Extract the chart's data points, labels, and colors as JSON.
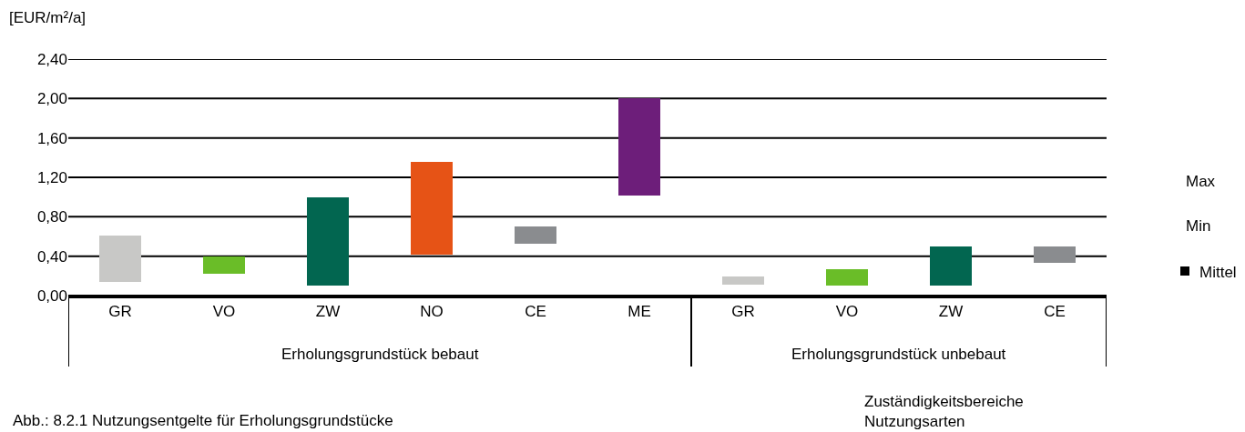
{
  "chart_data": {
    "type": "bar",
    "ylabel": "[EUR/m²/a]",
    "categories": [
      "GR",
      "VO",
      "ZW",
      "NO",
      "CE",
      "ME",
      "GR",
      "VO",
      "ZW",
      "CE"
    ],
    "base": [
      0.14,
      0.22,
      0.1,
      0.42,
      0.53,
      1.02,
      0.11,
      0.1,
      0.1,
      0.33
    ],
    "values": [
      0.47,
      0.18,
      0.9,
      0.94,
      0.17,
      0.98,
      0.08,
      0.17,
      0.4,
      0.17
    ],
    "colors": [
      "#c8c8c6",
      "#6abd28",
      "#026650",
      "#e65316",
      "#8a8c8f",
      "#6d1e7a",
      "#c8c8c6",
      "#6abd28",
      "#026650",
      "#8a8c8f"
    ],
    "ylim": [
      0,
      2.4
    ],
    "yticks": [
      {
        "value": 0,
        "label": "0,00"
      },
      {
        "value": 0.4,
        "label": "0,40"
      },
      {
        "value": 0.8,
        "label": "0,80"
      },
      {
        "value": 1.2,
        "label": "1,20"
      },
      {
        "value": 1.6,
        "label": "1,60"
      },
      {
        "value": 2.0,
        "label": "2,00"
      },
      {
        "value": 2.4,
        "label": "2,40"
      }
    ],
    "grid": "y",
    "annotations": [
      "Erholungsgrundstück bebaut",
      "Erholungsgrundstück unbebaut",
      "Max",
      "Min",
      "Mittel",
      "Zuständigkeitsbereiche\nNutzungsarten",
      "Abb.: 8.2.1 Nutzungsentgelte für Erholungsgrundstücke"
    ]
  }
}
